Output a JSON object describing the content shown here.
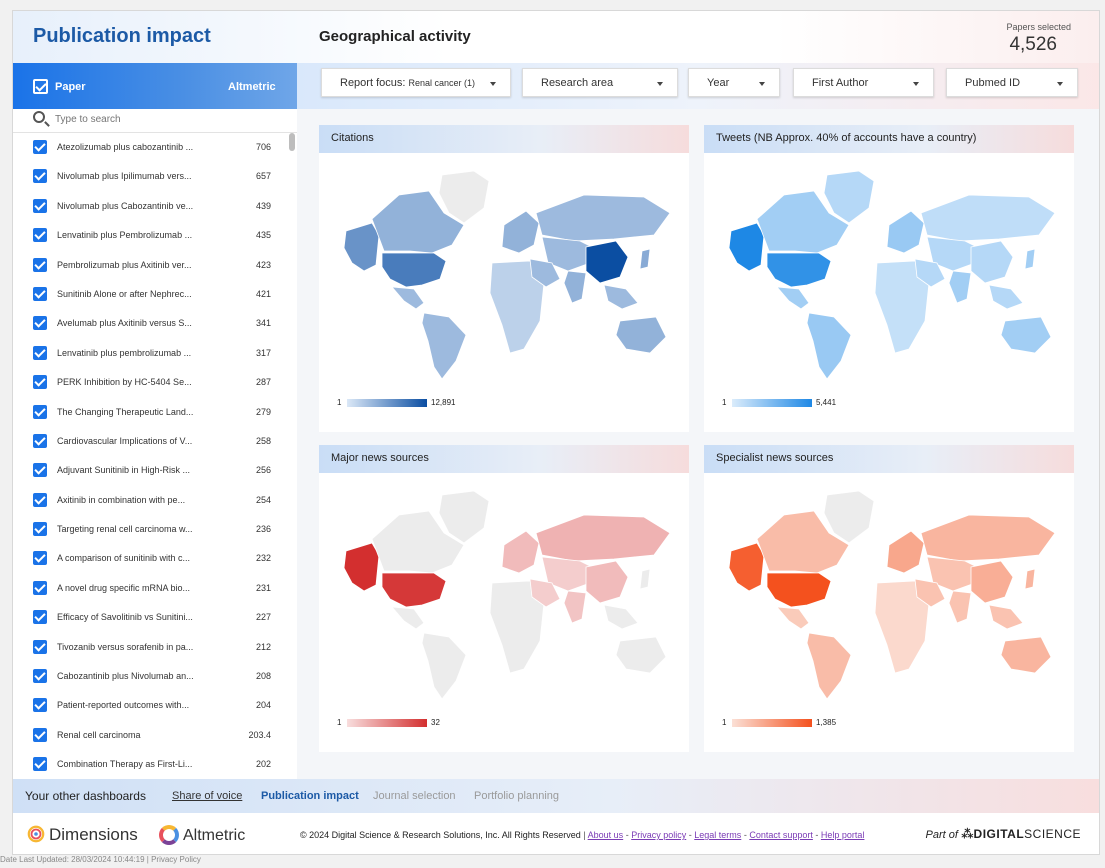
{
  "header": {
    "app_title": "Publication impact",
    "section_title": "Geographical activity",
    "papers_selected_label": "Papers selected",
    "papers_selected_value": "4,526"
  },
  "paper_panel": {
    "paper_label": "Paper",
    "altmetric_label": "Altmetric",
    "search_placeholder": "Type to search",
    "rows": [
      {
        "title": "Atezolizumab plus cabozantinib ...",
        "value": "706"
      },
      {
        "title": "Nivolumab plus Ipilimumab vers...",
        "value": "657"
      },
      {
        "title": "Nivolumab plus Cabozantinib ve...",
        "value": "439"
      },
      {
        "title": "Lenvatinib plus Pembrolizumab ...",
        "value": "435"
      },
      {
        "title": "Pembrolizumab plus Axitinib ver...",
        "value": "423"
      },
      {
        "title": "Sunitinib Alone or after Nephrec...",
        "value": "421"
      },
      {
        "title": "Avelumab plus Axitinib versus S...",
        "value": "341"
      },
      {
        "title": "Lenvatinib plus pembrolizumab ...",
        "value": "317"
      },
      {
        "title": "PERK Inhibition by HC-5404 Se...",
        "value": "287"
      },
      {
        "title": "The Changing Therapeutic Land...",
        "value": "279"
      },
      {
        "title": "Cardiovascular Implications of V...",
        "value": "258"
      },
      {
        "title": "Adjuvant Sunitinib in High-Risk ...",
        "value": "256"
      },
      {
        "title": "Axitinib in combination with pe...",
        "value": "254"
      },
      {
        "title": "Targeting renal cell carcinoma w...",
        "value": "236"
      },
      {
        "title": "A comparison of sunitinib with c...",
        "value": "232"
      },
      {
        "title": "A novel drug specific mRNA bio...",
        "value": "231"
      },
      {
        "title": "Efficacy of Savolitinib vs Sunitini...",
        "value": "227"
      },
      {
        "title": "Tivozanib versus sorafenib in pa...",
        "value": "212"
      },
      {
        "title": "Cabozantinib plus Nivolumab an...",
        "value": "208"
      },
      {
        "title": "Patient-reported outcomes with...",
        "value": "204"
      },
      {
        "title": "Renal cell carcinoma",
        "value": "203.4"
      },
      {
        "title": "Combination Therapy as First-Li...",
        "value": "202"
      }
    ]
  },
  "filters": {
    "report_focus_label": "Report focus:",
    "report_focus_value": "Renal cancer (1)",
    "research_area": "Research area",
    "year": "Year",
    "first_author": "First Author",
    "pubmed_id": "Pubmed ID"
  },
  "maps": {
    "citations": {
      "title": "Citations",
      "min": "1",
      "max": "12,891",
      "color_low": "#dbe8f7",
      "color_high": "#0b4ea2"
    },
    "tweets": {
      "title": "Tweets (NB Approx. 40% of accounts have a country)",
      "min": "1",
      "max": "5,441",
      "color_low": "#dbecfb",
      "color_high": "#1e88e5"
    },
    "major_news": {
      "title": "Major news sources",
      "min": "1",
      "max": "32",
      "color_low": "#f8dede",
      "color_high": "#d32f2f"
    },
    "specialist_news": {
      "title": "Specialist news sources",
      "min": "1",
      "max": "1,385",
      "color_low": "#fbe0d6",
      "color_high": "#f4511e"
    }
  },
  "footer": {
    "other_label": "Your other dashboards",
    "links": {
      "share": "Share of voice",
      "impact": "Publication impact",
      "journal": "Journal selection",
      "portfolio": "Portfolio planning"
    },
    "dimensions": "Dimensions",
    "altmetric": "Altmetric",
    "copyright": "© 2024 Digital Science & Research Solutions, Inc. All Rights Reserved",
    "about": "About us",
    "privacy": "Privacy policy",
    "legal": "Legal terms",
    "contact": "Contact support",
    "help": "Help portal",
    "part_of": "Part of",
    "ds_bold": "DIGITAL",
    "ds_light": "SCIENCE",
    "last_updated": "Date Last Updated: 28/03/2024 10:44:19 | Privacy Policy"
  }
}
